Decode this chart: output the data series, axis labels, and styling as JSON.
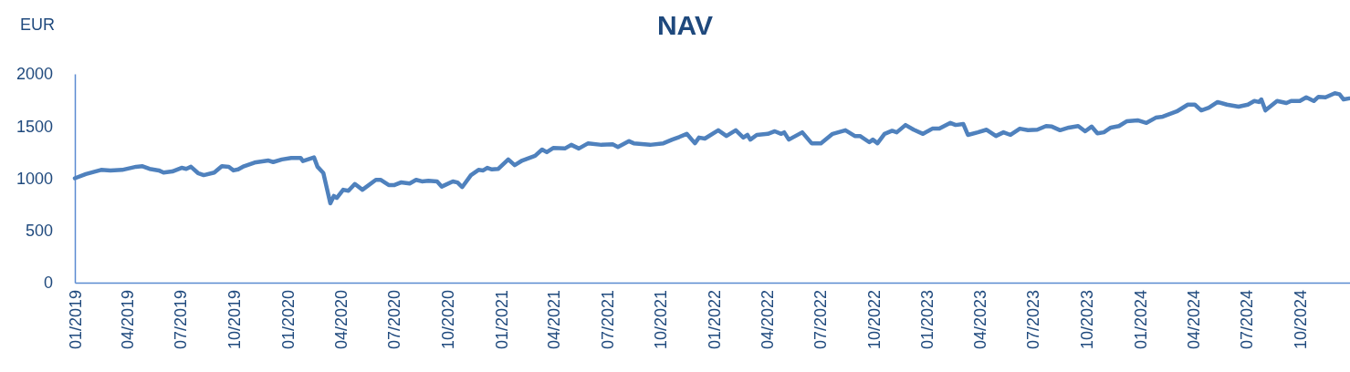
{
  "chart_data": {
    "type": "line",
    "title": "NAV",
    "ylabel": "EUR",
    "line_style": "solid",
    "grid": false,
    "xlim": [
      "2019-01-01",
      "2024-12-26"
    ],
    "xticks": [
      {
        "value": "2019-01-01",
        "label": "01/2019"
      },
      {
        "value": "2019-04-01",
        "label": "04/2019"
      },
      {
        "value": "2019-07-01",
        "label": "07/2019"
      },
      {
        "value": "2019-10-01",
        "label": "10/2019"
      },
      {
        "value": "2020-01-01",
        "label": "01/2020"
      },
      {
        "value": "2020-04-01",
        "label": "04/2020"
      },
      {
        "value": "2020-07-01",
        "label": "07/2020"
      },
      {
        "value": "2020-10-01",
        "label": "10/2020"
      },
      {
        "value": "2021-01-01",
        "label": "01/2021"
      },
      {
        "value": "2021-04-01",
        "label": "04/2021"
      },
      {
        "value": "2021-07-01",
        "label": "07/2021"
      },
      {
        "value": "2021-10-01",
        "label": "10/2021"
      },
      {
        "value": "2022-01-01",
        "label": "01/2022"
      },
      {
        "value": "2022-04-01",
        "label": "04/2022"
      },
      {
        "value": "2022-07-01",
        "label": "07/2022"
      },
      {
        "value": "2022-10-01",
        "label": "10/2022"
      },
      {
        "value": "2023-01-01",
        "label": "01/2023"
      },
      {
        "value": "2023-04-01",
        "label": "04/2023"
      },
      {
        "value": "2023-07-01",
        "label": "07/2023"
      },
      {
        "value": "2023-10-01",
        "label": "10/2023"
      },
      {
        "value": "2024-01-01",
        "label": "01/2024"
      },
      {
        "value": "2024-04-01",
        "label": "04/2024"
      },
      {
        "value": "2024-07-01",
        "label": "07/2024"
      },
      {
        "value": "2024-10-01",
        "label": "10/2024"
      }
    ],
    "ylim": [
      0,
      2000
    ],
    "yticks": [
      0,
      500,
      1000,
      1500,
      2000
    ],
    "series": [
      {
        "color": "#4f81bd",
        "x": [
          "2019-01-01",
          "2019-01-20",
          "2019-02-15",
          "2019-03-03",
          "2019-03-23",
          "2019-04-16",
          "2019-04-27",
          "2019-05-09",
          "2019-05-25",
          "2019-06-02",
          "2019-06-17",
          "2019-07-03",
          "2019-07-11",
          "2019-07-19",
          "2019-07-31",
          "2019-08-10",
          "2019-08-28",
          "2019-09-10",
          "2019-09-22",
          "2019-09-30",
          "2019-10-08",
          "2019-10-18",
          "2019-11-05",
          "2019-11-29",
          "2019-12-07",
          "2019-12-22",
          "2020-01-07",
          "2020-01-23",
          "2020-01-27",
          "2020-02-15",
          "2020-02-21",
          "2020-03-02",
          "2020-03-14",
          "2020-03-20",
          "2020-03-25",
          "2020-04-05",
          "2020-04-14",
          "2020-04-25",
          "2020-05-08",
          "2020-05-31",
          "2020-06-08",
          "2020-06-22",
          "2020-07-02",
          "2020-07-13",
          "2020-07-28",
          "2020-08-08",
          "2020-08-18",
          "2020-08-29",
          "2020-09-13",
          "2020-09-21",
          "2020-10-10",
          "2020-10-18",
          "2020-10-26",
          "2020-11-10",
          "2020-11-23",
          "2020-12-01",
          "2020-12-08",
          "2020-12-16",
          "2020-12-27",
          "2021-01-13",
          "2021-01-24",
          "2021-02-06",
          "2021-02-28",
          "2021-03-12",
          "2021-03-20",
          "2021-03-31",
          "2021-04-20",
          "2021-05-01",
          "2021-05-14",
          "2021-05-30",
          "2021-06-22",
          "2021-07-11",
          "2021-07-20",
          "2021-08-08",
          "2021-08-16",
          "2021-09-13",
          "2021-10-06",
          "2021-10-21",
          "2021-11-02",
          "2021-11-15",
          "2021-11-29",
          "2021-12-06",
          "2021-12-16",
          "2022-01-08",
          "2022-01-22",
          "2022-02-07",
          "2022-02-20",
          "2022-02-27",
          "2022-03-04",
          "2022-03-15",
          "2022-04-03",
          "2022-04-15",
          "2022-04-26",
          "2022-05-01",
          "2022-05-09",
          "2022-06-01",
          "2022-06-17",
          "2022-07-03",
          "2022-07-23",
          "2022-08-14",
          "2022-08-30",
          "2022-09-08",
          "2022-09-24",
          "2022-09-30",
          "2022-10-08",
          "2022-10-20",
          "2022-11-02",
          "2022-11-10",
          "2022-11-25",
          "2022-12-09",
          "2022-12-25",
          "2023-01-10",
          "2023-01-22",
          "2023-02-10",
          "2023-02-19",
          "2023-03-04",
          "2023-03-12",
          "2023-03-29",
          "2023-04-13",
          "2023-04-29",
          "2023-05-12",
          "2023-05-24",
          "2023-06-09",
          "2023-06-23",
          "2023-07-09",
          "2023-07-24",
          "2023-08-03",
          "2023-08-17",
          "2023-09-01",
          "2023-09-17",
          "2023-09-29",
          "2023-10-10",
          "2023-10-20",
          "2023-10-31",
          "2023-11-12",
          "2023-11-26",
          "2023-12-09",
          "2023-12-28",
          "2024-01-12",
          "2024-01-28",
          "2024-02-09",
          "2024-03-04",
          "2024-03-23",
          "2024-04-04",
          "2024-04-15",
          "2024-04-28",
          "2024-05-13",
          "2024-05-29",
          "2024-06-18",
          "2024-07-04",
          "2024-07-15",
          "2024-07-23",
          "2024-07-27",
          "2024-08-03",
          "2024-08-23",
          "2024-09-08",
          "2024-09-16",
          "2024-10-01",
          "2024-10-12",
          "2024-10-25",
          "2024-11-02",
          "2024-11-14",
          "2024-11-30",
          "2024-12-08",
          "2024-12-15",
          "2024-12-25"
        ],
        "values": [
          1000,
          1040,
          1080,
          1075,
          1080,
          1110,
          1115,
          1090,
          1075,
          1055,
          1065,
          1100,
          1090,
          1110,
          1050,
          1030,
          1055,
          1115,
          1110,
          1075,
          1085,
          1115,
          1150,
          1170,
          1155,
          1180,
          1195,
          1195,
          1165,
          1200,
          1110,
          1050,
          760,
          830,
          812,
          890,
          880,
          945,
          890,
          985,
          985,
          935,
          935,
          960,
          950,
          985,
          970,
          975,
          970,
          920,
          970,
          960,
          915,
          1030,
          1080,
          1075,
          1100,
          1085,
          1090,
          1180,
          1125,
          1170,
          1215,
          1275,
          1250,
          1290,
          1285,
          1320,
          1285,
          1335,
          1320,
          1325,
          1300,
          1355,
          1335,
          1320,
          1335,
          1370,
          1395,
          1425,
          1335,
          1390,
          1380,
          1460,
          1405,
          1460,
          1390,
          1415,
          1370,
          1415,
          1425,
          1450,
          1425,
          1440,
          1370,
          1440,
          1335,
          1335,
          1425,
          1460,
          1405,
          1405,
          1345,
          1370,
          1335,
          1425,
          1455,
          1440,
          1510,
          1465,
          1425,
          1475,
          1475,
          1530,
          1510,
          1520,
          1415,
          1440,
          1465,
          1405,
          1440,
          1415,
          1475,
          1460,
          1465,
          1500,
          1495,
          1460,
          1485,
          1500,
          1450,
          1495,
          1430,
          1440,
          1485,
          1500,
          1545,
          1555,
          1530,
          1580,
          1590,
          1640,
          1705,
          1705,
          1650,
          1675,
          1730,
          1705,
          1685,
          1705,
          1740,
          1730,
          1755,
          1650,
          1740,
          1720,
          1740,
          1740,
          1775,
          1740,
          1780,
          1775,
          1815,
          1805,
          1755,
          1765
        ]
      }
    ]
  }
}
